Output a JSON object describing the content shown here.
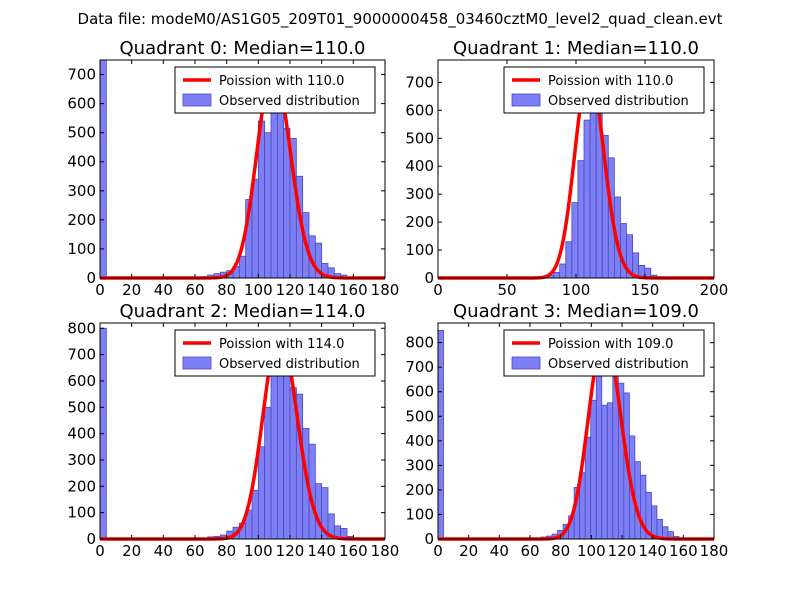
{
  "figure": {
    "suptitle": "Data file: modeM0/AS1G05_209T01_9000000458_03460cztM0_level2_quad_clean.evt"
  },
  "colors": {
    "bar_fill": "#7f7ff5",
    "bar_edge": "#4747c4",
    "poisson_line": "#ff0000",
    "axes": "#000000",
    "background": "#ffffff"
  },
  "chart_data": [
    {
      "type": "bar",
      "title": "Quadrant 0: Median=110.0",
      "xlim": [
        0,
        180
      ],
      "ylim": [
        0,
        750
      ],
      "xticks": [
        0,
        20,
        40,
        60,
        80,
        100,
        120,
        140,
        160,
        180
      ],
      "yticks": [
        0,
        100,
        200,
        300,
        400,
        500,
        600,
        700
      ],
      "bin_width": 4,
      "zero_bin": {
        "x": 0,
        "value": 750
      },
      "bins_x": [
        60,
        64,
        68,
        72,
        76,
        80,
        84,
        88,
        92,
        96,
        100,
        104,
        108,
        112,
        116,
        120,
        124,
        128,
        132,
        136,
        140,
        144,
        148,
        152,
        156,
        160,
        164
      ],
      "bins_values": [
        3,
        5,
        10,
        15,
        20,
        25,
        40,
        75,
        270,
        340,
        540,
        500,
        580,
        570,
        515,
        480,
        350,
        225,
        145,
        120,
        50,
        35,
        15,
        10,
        4,
        2,
        1
      ],
      "poisson": {
        "label": "Poission with 110.0",
        "mean": 110.0,
        "peak": 720
      },
      "legend": {
        "position": "upper-right",
        "entries": [
          "Poission with 110.0",
          "Observed distribution"
        ]
      }
    },
    {
      "type": "bar",
      "title": "Quadrant 1: Median=110.0",
      "xlim": [
        0,
        200
      ],
      "ylim": [
        0,
        780
      ],
      "xticks": [
        0,
        50,
        100,
        150,
        200
      ],
      "yticks": [
        0,
        100,
        200,
        300,
        400,
        500,
        600,
        700
      ],
      "bin_width": 4.4,
      "zero_bin": {
        "x": 0,
        "value": 0
      },
      "bins_x": [
        75,
        79.4,
        83.8,
        88.2,
        92.6,
        97,
        101.4,
        105.8,
        110.2,
        114.6,
        119,
        123.4,
        127.8,
        132.2,
        136.6,
        141,
        145.4,
        149.8,
        154.2,
        158.6
      ],
      "bins_values": [
        5,
        10,
        20,
        50,
        130,
        270,
        420,
        565,
        750,
        625,
        510,
        430,
        290,
        195,
        155,
        90,
        45,
        35,
        10,
        5
      ],
      "poisson": {
        "label": "Poission with 110.0",
        "mean": 110.0,
        "peak": 740
      },
      "legend": {
        "position": "upper-right",
        "entries": [
          "Poission with 110.0",
          "Observed distribution"
        ]
      }
    },
    {
      "type": "bar",
      "title": "Quadrant 2: Median=114.0",
      "xlim": [
        0,
        180
      ],
      "ylim": [
        0,
        820
      ],
      "xticks": [
        0,
        20,
        40,
        60,
        80,
        100,
        120,
        140,
        160,
        180
      ],
      "yticks": [
        0,
        100,
        200,
        300,
        400,
        500,
        600,
        700,
        800
      ],
      "bin_width": 4,
      "zero_bin": {
        "x": 0,
        "value": 800
      },
      "bins_x": [
        64,
        68,
        72,
        76,
        80,
        84,
        88,
        92,
        96,
        100,
        104,
        108,
        112,
        116,
        120,
        124,
        128,
        132,
        136,
        140,
        144,
        148,
        152,
        156,
        160
      ],
      "bins_values": [
        3,
        8,
        10,
        15,
        30,
        45,
        60,
        110,
        185,
        350,
        500,
        680,
        745,
        640,
        575,
        550,
        420,
        360,
        210,
        195,
        95,
        50,
        40,
        10,
        5
      ],
      "poisson": {
        "label": "Poission with 114.0",
        "mean": 114.0,
        "peak": 780
      },
      "legend": {
        "position": "upper-right",
        "entries": [
          "Poission with 114.0",
          "Observed distribution"
        ]
      }
    },
    {
      "type": "bar",
      "title": "Quadrant 3: Median=109.0",
      "xlim": [
        0,
        180
      ],
      "ylim": [
        0,
        880
      ],
      "xticks": [
        0,
        20,
        40,
        60,
        80,
        100,
        120,
        140,
        160,
        180
      ],
      "yticks": [
        0,
        100,
        200,
        300,
        400,
        500,
        600,
        700,
        800
      ],
      "bin_width": 3.6,
      "zero_bin": {
        "x": 0,
        "value": 850
      },
      "bins_x": [
        60,
        63.6,
        67.2,
        70.8,
        74.4,
        78,
        81.6,
        85.2,
        88.8,
        92.4,
        96,
        99.6,
        103.2,
        106.8,
        110.4,
        114,
        117.6,
        121.2,
        124.8,
        128.4,
        132,
        135.6,
        139.2,
        142.8,
        146.4,
        150,
        153.6,
        157.2,
        160.8
      ],
      "bins_values": [
        2,
        4,
        8,
        12,
        20,
        35,
        60,
        95,
        210,
        270,
        415,
        565,
        730,
        545,
        555,
        820,
        635,
        595,
        420,
        315,
        260,
        190,
        135,
        80,
        50,
        30,
        10,
        5,
        3
      ],
      "poisson": {
        "label": "Poission with 109.0",
        "mean": 109.0,
        "peak": 830
      },
      "legend": {
        "position": "upper-right",
        "entries": [
          "Poission with 109.0",
          "Observed distribution"
        ]
      }
    }
  ]
}
